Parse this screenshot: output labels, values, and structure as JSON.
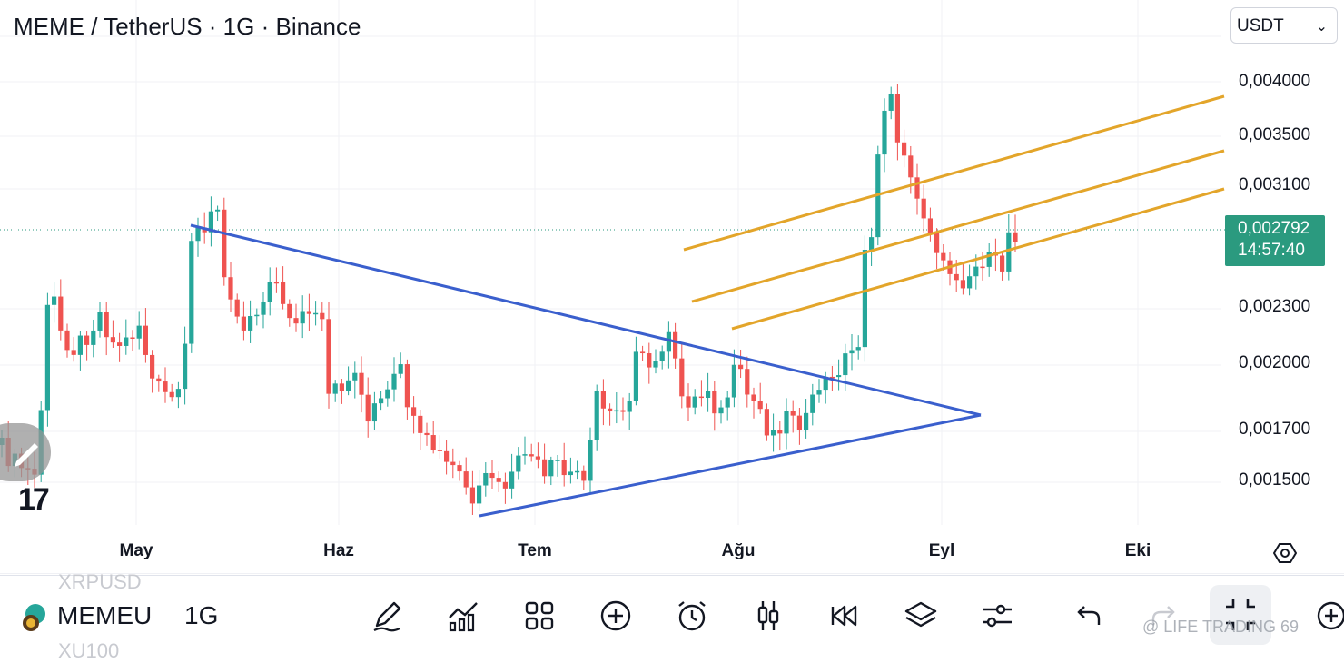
{
  "header": {
    "title": "MEME / TetherUS · 1G · Binance",
    "currency_selector": {
      "value": "USDT",
      "chevron_icon": "chevron-down-icon"
    }
  },
  "price_axis": {
    "labels": [
      "0,004000",
      "0,003500",
      "0,003100",
      "0,002300",
      "0,002000",
      "0,001700",
      "0,001500"
    ],
    "last_price": "0,002792",
    "countdown": "14:57:40"
  },
  "time_axis": {
    "months": [
      "May",
      "Haz",
      "Tem",
      "Ağu",
      "Eyl",
      "Eki"
    ]
  },
  "colors": {
    "up": "#26a69a",
    "down": "#ef5350",
    "triangle": "#3a5fcd",
    "channel": "#e3a52a",
    "last_price_bg": "#2b9a7f"
  },
  "toolbar": {
    "symbol": "MEMEU",
    "interval": "1G",
    "faded_top": "XRPUSD",
    "faded_bottom": "XU100",
    "watermark": "@ LIFE TRADING 69",
    "icons": [
      "pencil-icon",
      "indicators-icon",
      "templates-icon",
      "add-icon",
      "alert-clock-icon",
      "candles-icon",
      "replay-icon",
      "layers-icon",
      "settings-sliders-icon",
      "undo-icon",
      "redo-icon",
      "fullscreen-icon",
      "zoom-plus-icon"
    ]
  }
}
